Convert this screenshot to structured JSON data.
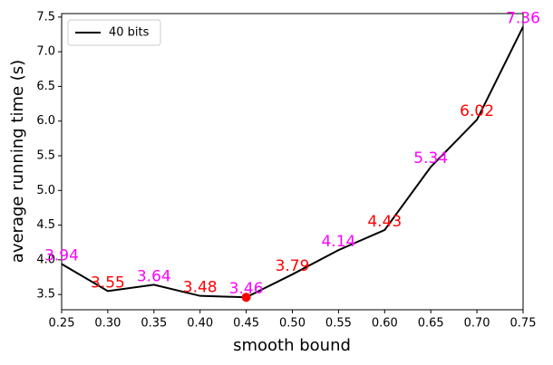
{
  "chart_data": {
    "type": "line",
    "x_label": "smooth bound",
    "y_label": "average running time (s)",
    "x": [
      0.25,
      0.3,
      0.35,
      0.4,
      0.45,
      0.5,
      0.55,
      0.6,
      0.65,
      0.7,
      0.75
    ],
    "series": [
      {
        "name": "40 bits",
        "color": "#000000",
        "values": [
          3.94,
          3.55,
          3.64,
          3.48,
          3.46,
          3.79,
          4.14,
          4.43,
          5.34,
          6.02,
          7.36
        ]
      }
    ],
    "label_colors": [
      "#ff00ff",
      "#ff0000",
      "#ff00ff",
      "#ff0000",
      "#ff00ff",
      "#ff0000",
      "#ff00ff",
      "#ff0000",
      "#ff00ff",
      "#ff0000",
      "#ff00ff"
    ],
    "min_marker_color": "#ff0000",
    "xlim": [
      0.25,
      0.75
    ],
    "xticks": [
      0.25,
      {
        "value": 0.3,
        "label": "0.30"
      },
      0.35,
      {
        "value": 0.4,
        "label": "0.40"
      },
      0.45,
      {
        "value": 0.5,
        "label": "0.50"
      },
      0.55,
      {
        "value": 0.6,
        "label": "0.60"
      },
      0.65,
      {
        "value": 0.7,
        "label": "0.70"
      },
      0.75
    ],
    "ylim": [
      3.28,
      7.55
    ],
    "yticks": [
      3.5,
      {
        "value": 4,
        "label": "4.0"
      },
      4.5,
      {
        "value": 5,
        "label": "5.0"
      },
      5.5,
      {
        "value": 6,
        "label": "6.0"
      },
      6.5,
      {
        "value": 7,
        "label": "7.0"
      },
      7.5
    ],
    "legend": "upper left"
  }
}
